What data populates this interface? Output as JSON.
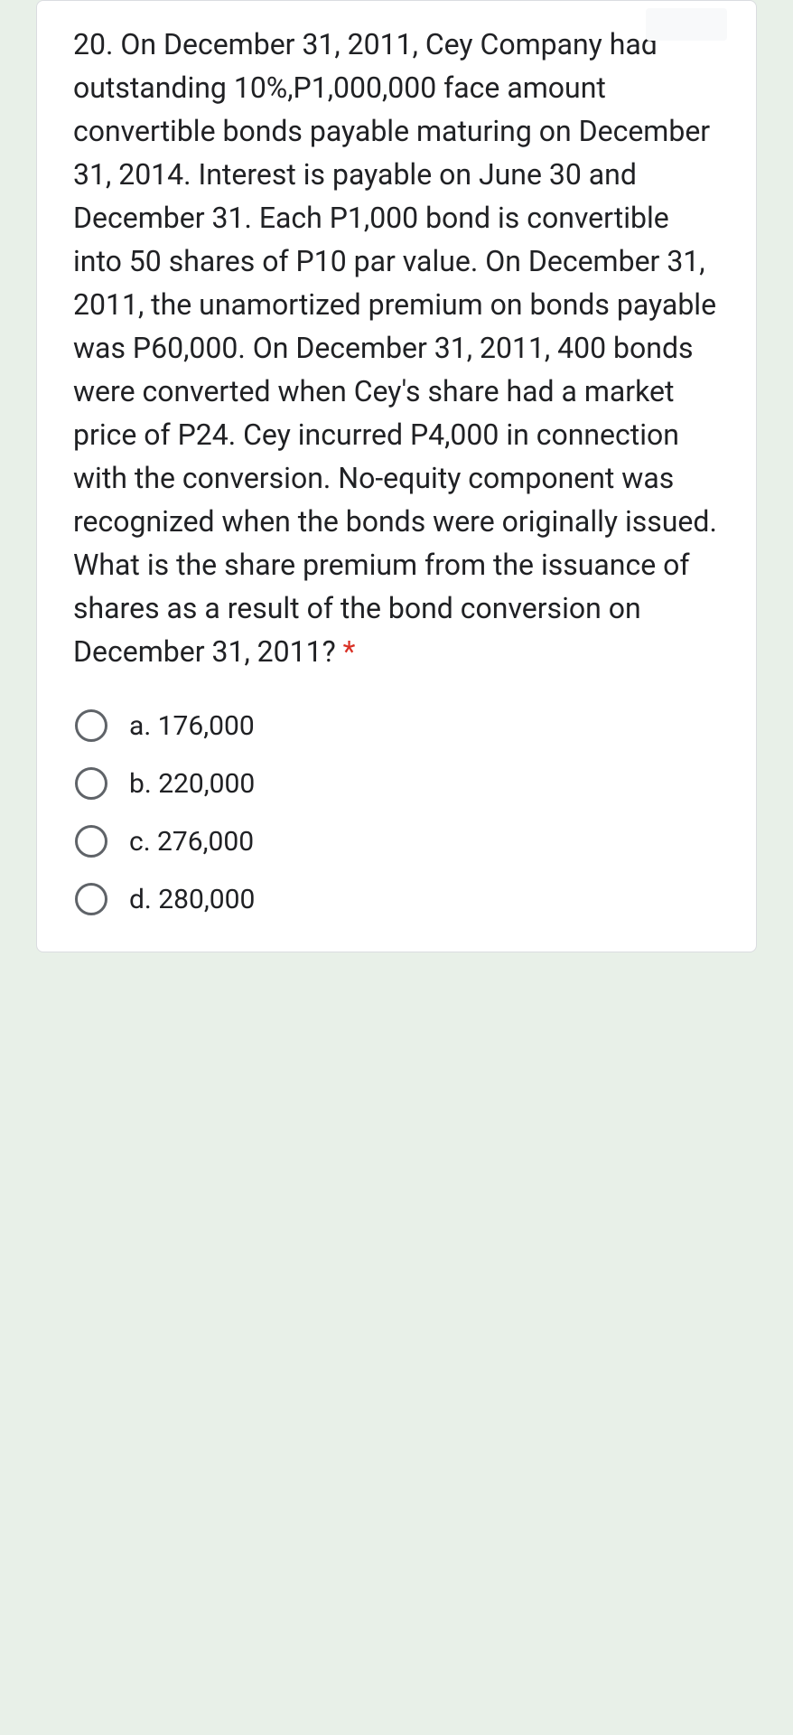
{
  "question": {
    "text": "20. On December 31, 2011, Cey Company had outstanding 10%,P1,000,000 face amount convertible bonds payable maturing on December 31, 2014. Interest is payable on June 30 and December 31. Each P1,000 bond is convertible into 50 shares of P10 par value. On December 31, 2011, the unamortized premium on bonds payable was P60,000. On December 31, 2011, 400 bonds were converted when Cey's share had a market price of P24. Cey incurred P4,000 in connection with the conversion. No-equity component was recognized when the bonds were originally issued. What is the share premium from the issuance of shares as a result of the bond conversion on December 31, 2011?",
    "required_marker": "*",
    "options": [
      {
        "label": "a. 176,000"
      },
      {
        "label": "b. 220,000"
      },
      {
        "label": "c. 276,000"
      },
      {
        "label": "d. 280,000"
      }
    ]
  },
  "colors": {
    "background": "#e8f0e8",
    "card_background": "#ffffff",
    "card_border": "#dadce0",
    "text": "#202124",
    "radio_border": "#5f6368",
    "required": "#d93025"
  }
}
